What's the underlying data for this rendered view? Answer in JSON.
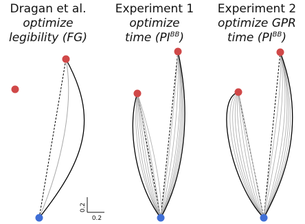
{
  "panels": [
    {
      "id": "fg",
      "title_line1": "Dragan et al.",
      "title_line2": "optimize",
      "title_line3_prefix": "legibility (FG)",
      "title_line3_sup": "",
      "title_line3_suffix": ""
    },
    {
      "id": "exp1",
      "title_line1": "Experiment 1",
      "title_line2": "optimize",
      "title_line3_prefix": "time (PI",
      "title_line3_sup": "BB",
      "title_line3_suffix": ")"
    },
    {
      "id": "exp2",
      "title_line1": "Experiment 2",
      "title_line2": "optimize GPR",
      "title_line3_prefix": "time (PI",
      "title_line3_sup": "BB",
      "title_line3_suffix": ")"
    }
  ],
  "scale_bar": {
    "vertical_label": "0.2",
    "horizontal_label": "0.2"
  },
  "colors": {
    "goal_marker": "#d04848",
    "start_marker": "#3f6fd6",
    "trajectory_main": "#000000",
    "trajectory_faint": "#a8a8a8",
    "straight_line": "#000000"
  }
}
